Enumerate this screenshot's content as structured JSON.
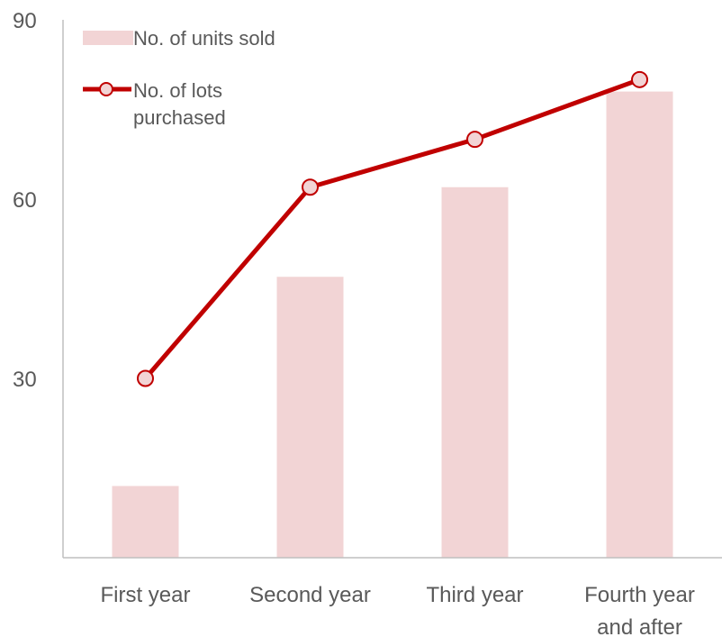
{
  "chart_data": {
    "type": "bar",
    "categories": [
      [
        "First year"
      ],
      [
        "Second year"
      ],
      [
        "Third year"
      ],
      [
        "Fourth year",
        "and after"
      ]
    ],
    "series": [
      {
        "name": "No. of units sold",
        "kind": "bar",
        "color": "#f2d4d5",
        "values": [
          12,
          47,
          62,
          78
        ]
      },
      {
        "name_lines": [
          "No. of lots",
          "purchased"
        ],
        "kind": "line",
        "color": "#c00000",
        "marker_fill": "#f2d4d5",
        "values": [
          30,
          62,
          70,
          80
        ]
      }
    ],
    "yticks": [
      30,
      60,
      90
    ],
    "ylim": [
      0,
      90
    ],
    "grid": false,
    "legend_position": "top-left"
  }
}
